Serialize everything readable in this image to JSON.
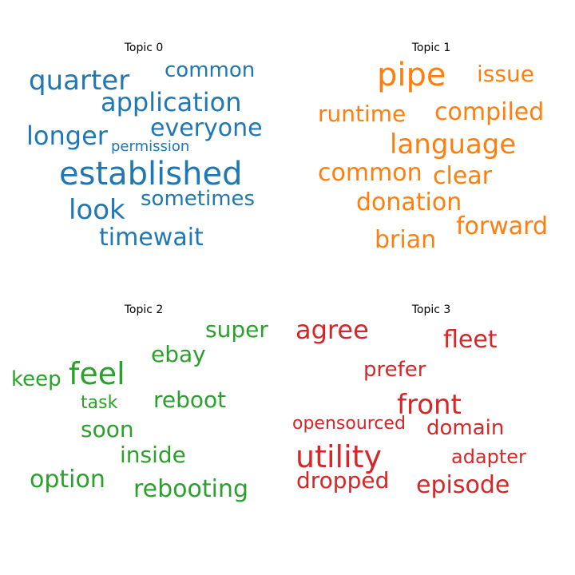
{
  "chart_data": [
    {
      "type": "wordcloud",
      "title": "Topic 0",
      "color": "#1f77b4",
      "words": [
        "established",
        "application",
        "quarter",
        "everyone",
        "longer",
        "common",
        "look",
        "timewait",
        "sometimes",
        "permission"
      ]
    },
    {
      "type": "wordcloud",
      "title": "Topic 1",
      "color": "#ff7f0e",
      "words": [
        "pipe",
        "language",
        "issue",
        "compiled",
        "common",
        "runtime",
        "clear",
        "donation",
        "forward",
        "brian"
      ]
    },
    {
      "type": "wordcloud",
      "title": "Topic 2",
      "color": "#2ca02c",
      "words": [
        "feel",
        "super",
        "ebay",
        "keep",
        "reboot",
        "task",
        "soon",
        "inside",
        "option",
        "rebooting"
      ]
    },
    {
      "type": "wordcloud",
      "title": "Topic 3",
      "color": "#d62728",
      "words": [
        "utility",
        "agree",
        "front",
        "fleet",
        "prefer",
        "episode",
        "dropped",
        "opensourced",
        "domain",
        "adapter"
      ]
    }
  ]
}
